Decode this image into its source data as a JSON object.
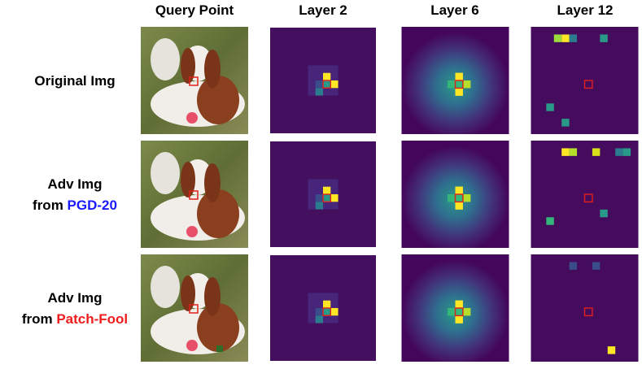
{
  "columns": [
    "Query Point",
    "Layer 2",
    "Layer 6",
    "Layer 12"
  ],
  "rows": [
    {
      "label": "Original Img"
    },
    {
      "label": "Adv Img",
      "prefix": "from",
      "attack": "PGD-20"
    },
    {
      "label": "Adv Img",
      "prefix": "from",
      "attack": "Patch-Fool"
    }
  ]
}
